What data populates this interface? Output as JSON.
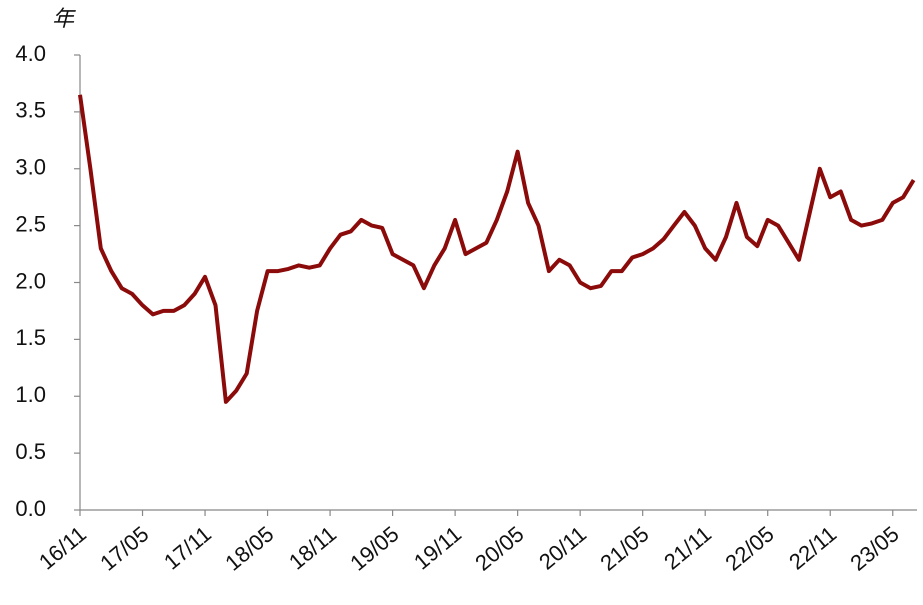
{
  "chart_data": {
    "type": "line",
    "y_label": "年",
    "categories": [
      "16/11",
      null,
      null,
      null,
      null,
      null,
      "17/05",
      null,
      null,
      null,
      null,
      null,
      "17/11",
      null,
      null,
      null,
      null,
      null,
      "18/05",
      null,
      null,
      null,
      null,
      null,
      "18/11",
      null,
      null,
      null,
      null,
      null,
      "19/05",
      null,
      null,
      null,
      null,
      null,
      "19/11",
      null,
      null,
      null,
      null,
      null,
      "20/05",
      null,
      null,
      null,
      null,
      null,
      "20/11",
      null,
      null,
      null,
      null,
      null,
      "21/05",
      null,
      null,
      null,
      null,
      null,
      "21/11",
      null,
      null,
      null,
      null,
      null,
      "22/05",
      null,
      null,
      null,
      null,
      null,
      "22/11",
      null,
      null,
      null,
      null,
      null,
      "23/05",
      null,
      null
    ],
    "values": [
      3.65,
      3.0,
      2.3,
      2.1,
      1.95,
      1.9,
      1.8,
      1.72,
      1.75,
      1.75,
      1.8,
      1.9,
      2.05,
      1.8,
      0.95,
      1.05,
      1.2,
      1.75,
      2.1,
      2.1,
      2.12,
      2.15,
      2.13,
      2.15,
      2.3,
      2.42,
      2.45,
      2.55,
      2.5,
      2.48,
      2.25,
      2.2,
      2.15,
      1.95,
      2.15,
      2.3,
      2.55,
      2.25,
      2.3,
      2.35,
      2.55,
      2.8,
      3.15,
      2.7,
      2.5,
      2.1,
      2.2,
      2.15,
      2.0,
      1.95,
      1.97,
      2.1,
      2.1,
      2.22,
      2.25,
      2.3,
      2.38,
      2.5,
      2.62,
      2.5,
      2.3,
      2.2,
      2.4,
      2.7,
      2.4,
      2.32,
      2.55,
      2.5,
      2.35,
      2.2,
      2.6,
      3.0,
      2.75,
      2.8,
      2.55,
      2.5,
      2.52,
      2.55,
      2.7,
      2.75,
      2.9
    ],
    "color": "#8b0a0a",
    "ylim": [
      0,
      4
    ],
    "yticks": [
      {
        "value": 0,
        "label": "0.0"
      },
      0.5,
      {
        "value": 1,
        "label": "1.0"
      },
      1.5,
      {
        "value": 2,
        "label": "2.0"
      },
      2.5,
      {
        "value": 3,
        "label": "3.0"
      },
      3.5,
      {
        "value": 4,
        "label": "4.0"
      }
    ]
  }
}
